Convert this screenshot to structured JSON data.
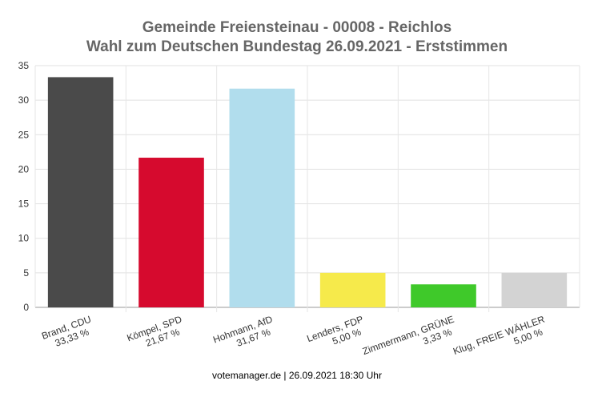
{
  "header": {
    "title_line1": "Gemeinde Freiensteinau - 00008 - Reichlos",
    "title_line2": "Wahl zum Deutschen Bundestag 26.09.2021  - Erststimmen"
  },
  "footer": {
    "text": "votemanager.de | 26.09.2021 18:30 Uhr"
  },
  "chart_data": {
    "type": "bar",
    "title": "Gemeinde Freiensteinau - 00008 - Reichlos\nWahl zum Deutschen Bundestag 26.09.2021  - Erststimmen",
    "categories": [
      "Brand, CDU",
      "Kömpel, SPD",
      "Hohmann, AfD",
      "Lenders, FDP",
      "Zimmermann, GRÜNE",
      "Klug, FREIE WÄHLER"
    ],
    "category_percent_labels": [
      "33,33 %",
      "21,67 %",
      "31,67 %",
      "5,00 %",
      "3,33 %",
      "5,00 %"
    ],
    "values": [
      33.33,
      21.67,
      31.67,
      5.0,
      3.33,
      5.0
    ],
    "colors": [
      "#4a4a4a",
      "#d60a2e",
      "#b1dded",
      "#f6ea4b",
      "#3fc92a",
      "#d3d3d3"
    ],
    "ylim": [
      0,
      35
    ],
    "yticks": [
      0,
      5,
      10,
      15,
      20,
      25,
      30,
      35
    ],
    "xlabel": "",
    "ylabel": "",
    "grid": true,
    "legend": "none"
  }
}
